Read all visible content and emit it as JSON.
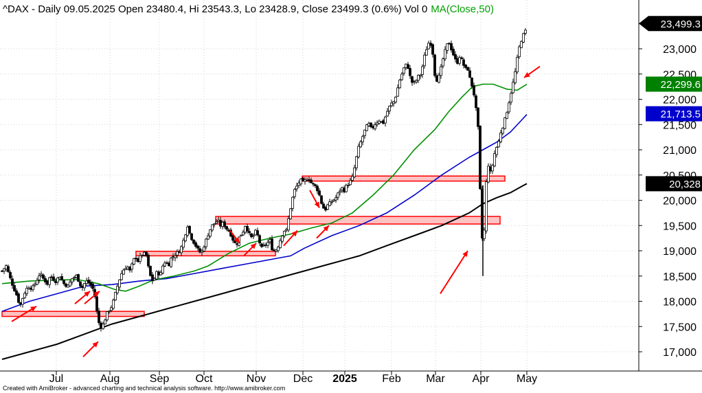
{
  "header": {
    "title_text": "^DAX - Daily 09.05.2025 Open 23480.4, Hi 23543.3, Lo 23428.9, Close 23499.3 (0.6%) Vol 0",
    "indicator_text": "MA(Close,50)"
  },
  "footer": {
    "text": "Created with AmiBroker - advanced charting and technical analysis software. http://www.amibroker.com"
  },
  "colors": {
    "price_bars": "#000000",
    "ma50": "#009000",
    "ma100": "#0000cc",
    "ma200": "#000000",
    "zone_fill": "#ffb3b3",
    "zone_stroke": "#ff0000",
    "arrow": "#ff0000",
    "grid": "#d0d0d0"
  },
  "chart_data": {
    "type": "ohlc",
    "title": "^DAX - Daily 09.05.2025 Open 23480.4, Hi 23543.3, Lo 23428.9, Close 23499.3 (0.6%) Vol 0",
    "y_range": [
      16700,
      23500
    ],
    "y_ticks": [
      17000,
      17500,
      18000,
      18500,
      19000,
      19500,
      20000,
      20500,
      21000,
      21500,
      22000,
      22500,
      23000
    ],
    "y_tick_labels": [
      "17,000",
      "17,500",
      "18,000",
      "18,500",
      "19,000",
      "19,500",
      "20,000",
      "20,500",
      "21,000",
      "21,500",
      "22,000",
      "22,500",
      "23,000"
    ],
    "x_tick_labels": [
      "Jul",
      "Aug",
      "Sep",
      "Oct",
      "Nov",
      "Dec",
      "2025",
      "Feb",
      "Mar",
      "Apr",
      "May"
    ],
    "grid": true,
    "last_values": [
      {
        "label": "23,499.3",
        "value": 23499.3,
        "series": "price"
      },
      {
        "label": "22,299.6",
        "value": 22299.6,
        "series": "ma50"
      },
      {
        "label": "21,713.5",
        "value": 21713.5,
        "series": "ma100"
      },
      {
        "label": "20,328",
        "value": 20328,
        "series": "ma200"
      }
    ],
    "price_path": [
      [
        0,
        18600
      ],
      [
        6,
        18700
      ],
      [
        12,
        18450
      ],
      [
        16,
        18300
      ],
      [
        22,
        18100
      ],
      [
        26,
        17900
      ],
      [
        32,
        18150
      ],
      [
        38,
        18300
      ],
      [
        44,
        18250
      ],
      [
        50,
        18400
      ],
      [
        55,
        18550
      ],
      [
        60,
        18450
      ],
      [
        66,
        18350
      ],
      [
        70,
        18500
      ],
      [
        78,
        18400
      ],
      [
        84,
        18500
      ],
      [
        90,
        18350
      ],
      [
        96,
        18300
      ],
      [
        102,
        18450
      ],
      [
        108,
        18500
      ],
      [
        112,
        18400
      ],
      [
        116,
        18250
      ],
      [
        122,
        18400
      ],
      [
        128,
        18350
      ],
      [
        134,
        18200
      ],
      [
        138,
        17800
      ],
      [
        142,
        17500
      ],
      [
        146,
        17500
      ],
      [
        150,
        17650
      ],
      [
        154,
        17800
      ],
      [
        158,
        17850
      ],
      [
        162,
        18000
      ],
      [
        166,
        18200
      ],
      [
        170,
        18400
      ],
      [
        174,
        18550
      ],
      [
        178,
        18650
      ],
      [
        182,
        18700
      ],
      [
        186,
        18600
      ],
      [
        190,
        18750
      ],
      [
        194,
        18900
      ],
      [
        198,
        18800
      ],
      [
        202,
        18900
      ],
      [
        206,
        18950
      ],
      [
        210,
        18900
      ],
      [
        214,
        18600
      ],
      [
        218,
        18400
      ],
      [
        222,
        18450
      ],
      [
        226,
        18600
      ],
      [
        230,
        18500
      ],
      [
        234,
        18700
      ],
      [
        238,
        18800
      ],
      [
        242,
        18700
      ],
      [
        246,
        18850
      ],
      [
        250,
        18900
      ],
      [
        254,
        18950
      ],
      [
        258,
        19000
      ],
      [
        262,
        19100
      ],
      [
        266,
        19300
      ],
      [
        270,
        19500
      ],
      [
        274,
        19300
      ],
      [
        278,
        19200
      ],
      [
        282,
        19100
      ],
      [
        286,
        19000
      ],
      [
        290,
        18950
      ],
      [
        294,
        19100
      ],
      [
        298,
        19250
      ],
      [
        302,
        19400
      ],
      [
        306,
        19500
      ],
      [
        310,
        19550
      ],
      [
        314,
        19600
      ],
      [
        318,
        19500
      ],
      [
        322,
        19550
      ],
      [
        326,
        19450
      ],
      [
        330,
        19400
      ],
      [
        334,
        19300
      ],
      [
        338,
        19150
      ],
      [
        342,
        19150
      ],
      [
        346,
        19300
      ],
      [
        350,
        19350
      ],
      [
        354,
        19500
      ],
      [
        358,
        19400
      ],
      [
        362,
        19250
      ],
      [
        366,
        19300
      ],
      [
        370,
        19400
      ],
      [
        374,
        19200
      ],
      [
        378,
        19050
      ],
      [
        382,
        19100
      ],
      [
        386,
        19150
      ],
      [
        390,
        19200
      ],
      [
        394,
        19000
      ],
      [
        398,
        19000
      ],
      [
        402,
        19100
      ],
      [
        406,
        19250
      ],
      [
        410,
        19400
      ],
      [
        414,
        19400
      ],
      [
        418,
        19700
      ],
      [
        422,
        20000
      ],
      [
        426,
        20200
      ],
      [
        430,
        20300
      ],
      [
        434,
        20400
      ],
      [
        438,
        20350
      ],
      [
        442,
        20400
      ],
      [
        446,
        20450
      ],
      [
        450,
        20350
      ],
      [
        454,
        20300
      ],
      [
        458,
        20250
      ],
      [
        462,
        20100
      ],
      [
        466,
        19900
      ],
      [
        470,
        19800
      ],
      [
        474,
        19900
      ],
      [
        478,
        19950
      ],
      [
        482,
        20000
      ],
      [
        486,
        20050
      ],
      [
        490,
        20150
      ],
      [
        494,
        20250
      ],
      [
        498,
        20200
      ],
      [
        502,
        20300
      ],
      [
        506,
        20350
      ],
      [
        510,
        20450
      ],
      [
        514,
        20700
      ],
      [
        518,
        21000
      ],
      [
        522,
        21150
      ],
      [
        526,
        21300
      ],
      [
        530,
        21450
      ],
      [
        534,
        21500
      ],
      [
        538,
        21400
      ],
      [
        542,
        21500
      ],
      [
        546,
        21550
      ],
      [
        550,
        21600
      ],
      [
        554,
        21500
      ],
      [
        558,
        21650
      ],
      [
        562,
        21800
      ],
      [
        566,
        21900
      ],
      [
        570,
        21950
      ],
      [
        574,
        22100
      ],
      [
        578,
        22350
      ],
      [
        582,
        22500
      ],
      [
        586,
        22650
      ],
      [
        590,
        22700
      ],
      [
        594,
        22450
      ],
      [
        598,
        22300
      ],
      [
        602,
        22350
      ],
      [
        606,
        22450
      ],
      [
        610,
        22500
      ],
      [
        614,
        22800
      ],
      [
        618,
        23000
      ],
      [
        622,
        23150
      ],
      [
        626,
        23050
      ],
      [
        630,
        22500
      ],
      [
        634,
        22350
      ],
      [
        638,
        22550
      ],
      [
        642,
        22800
      ],
      [
        646,
        23000
      ],
      [
        650,
        23150
      ],
      [
        654,
        23000
      ],
      [
        658,
        22850
      ],
      [
        662,
        22700
      ],
      [
        666,
        22850
      ],
      [
        670,
        22750
      ],
      [
        674,
        22600
      ],
      [
        678,
        22600
      ],
      [
        682,
        22350
      ],
      [
        686,
        22200
      ],
      [
        690,
        21800
      ],
      [
        694,
        21300
      ],
      [
        696,
        20200
      ],
      [
        698,
        19600
      ],
      [
        700,
        18900
      ],
      [
        702,
        19400
      ],
      [
        704,
        20000
      ],
      [
        706,
        20700
      ],
      [
        708,
        20700
      ],
      [
        710,
        20500
      ],
      [
        714,
        20700
      ],
      [
        718,
        21000
      ],
      [
        722,
        21100
      ],
      [
        726,
        21350
      ],
      [
        730,
        21500
      ],
      [
        734,
        21700
      ],
      [
        738,
        21950
      ],
      [
        742,
        22200
      ],
      [
        746,
        22450
      ],
      [
        750,
        22800
      ],
      [
        754,
        23100
      ],
      [
        758,
        23250
      ],
      [
        762,
        23350
      ],
      [
        764,
        23499
      ]
    ],
    "ma50": [
      [
        0,
        18350
      ],
      [
        40,
        18400
      ],
      [
        80,
        18420
      ],
      [
        110,
        18430
      ],
      [
        140,
        18350
      ],
      [
        165,
        18230
      ],
      [
        180,
        18200
      ],
      [
        200,
        18300
      ],
      [
        220,
        18420
      ],
      [
        250,
        18500
      ],
      [
        280,
        18600
      ],
      [
        300,
        18700
      ],
      [
        330,
        18950
      ],
      [
        360,
        19150
      ],
      [
        390,
        19250
      ],
      [
        420,
        19330
      ],
      [
        450,
        19450
      ],
      [
        480,
        19550
      ],
      [
        510,
        19750
      ],
      [
        540,
        20100
      ],
      [
        570,
        20500
      ],
      [
        600,
        21000
      ],
      [
        630,
        21400
      ],
      [
        650,
        21750
      ],
      [
        670,
        22050
      ],
      [
        685,
        22250
      ],
      [
        700,
        22300
      ],
      [
        715,
        22300
      ],
      [
        735,
        22200
      ],
      [
        750,
        22180
      ],
      [
        764,
        22300
      ]
    ],
    "ma100": [
      [
        0,
        17800
      ],
      [
        40,
        18000
      ],
      [
        80,
        18150
      ],
      [
        120,
        18300
      ],
      [
        160,
        18330
      ],
      [
        200,
        18400
      ],
      [
        240,
        18450
      ],
      [
        280,
        18550
      ],
      [
        320,
        18650
      ],
      [
        360,
        18750
      ],
      [
        400,
        18850
      ],
      [
        420,
        18900
      ],
      [
        440,
        19050
      ],
      [
        480,
        19300
      ],
      [
        520,
        19500
      ],
      [
        560,
        19750
      ],
      [
        600,
        20100
      ],
      [
        640,
        20500
      ],
      [
        680,
        20850
      ],
      [
        700,
        21000
      ],
      [
        720,
        21150
      ],
      [
        740,
        21350
      ],
      [
        764,
        21700
      ]
    ],
    "ma200": [
      [
        0,
        16850
      ],
      [
        40,
        17000
      ],
      [
        80,
        17150
      ],
      [
        120,
        17350
      ],
      [
        160,
        17550
      ],
      [
        200,
        17700
      ],
      [
        240,
        17850
      ],
      [
        280,
        18000
      ],
      [
        320,
        18150
      ],
      [
        360,
        18300
      ],
      [
        400,
        18450
      ],
      [
        440,
        18600
      ],
      [
        480,
        18750
      ],
      [
        520,
        18900
      ],
      [
        560,
        19100
      ],
      [
        600,
        19300
      ],
      [
        640,
        19500
      ],
      [
        680,
        19750
      ],
      [
        700,
        19930
      ],
      [
        720,
        20050
      ],
      [
        740,
        20150
      ],
      [
        764,
        20330
      ]
    ],
    "support_zones": [
      {
        "start": 0,
        "end": 207,
        "low": 17700,
        "high": 17800
      },
      {
        "start": 195,
        "end": 398,
        "low": 18900,
        "high": 18990
      },
      {
        "start": 311,
        "end": 725,
        "low": 19530,
        "high": 19680
      },
      {
        "start": 437,
        "end": 732,
        "low": 20380,
        "high": 20480
      }
    ],
    "arrows": [
      {
        "from": [
          14,
          17600
        ],
        "to": [
          50,
          17900
        ]
      },
      {
        "from": [
          106,
          17950
        ],
        "to": [
          128,
          18200
        ]
      },
      {
        "from": [
          118,
          16900
        ],
        "to": [
          140,
          17200
        ]
      },
      {
        "from": [
          120,
          17950
        ],
        "to": [
          142,
          18200
        ]
      },
      {
        "from": [
          332,
          19400
        ],
        "to": [
          346,
          19150
        ]
      },
      {
        "from": [
          352,
          18900
        ],
        "to": [
          370,
          19150
        ]
      },
      {
        "from": [
          410,
          19100
        ],
        "to": [
          430,
          19400
        ]
      },
      {
        "from": [
          448,
          20200
        ],
        "to": [
          462,
          19850
        ]
      },
      {
        "from": [
          458,
          19250
        ],
        "to": [
          476,
          19500
        ]
      },
      {
        "from": [
          638,
          18150
        ],
        "to": [
          678,
          19000
        ]
      },
      {
        "from": [
          783,
          22650
        ],
        "to": [
          760,
          22430
        ]
      }
    ]
  }
}
